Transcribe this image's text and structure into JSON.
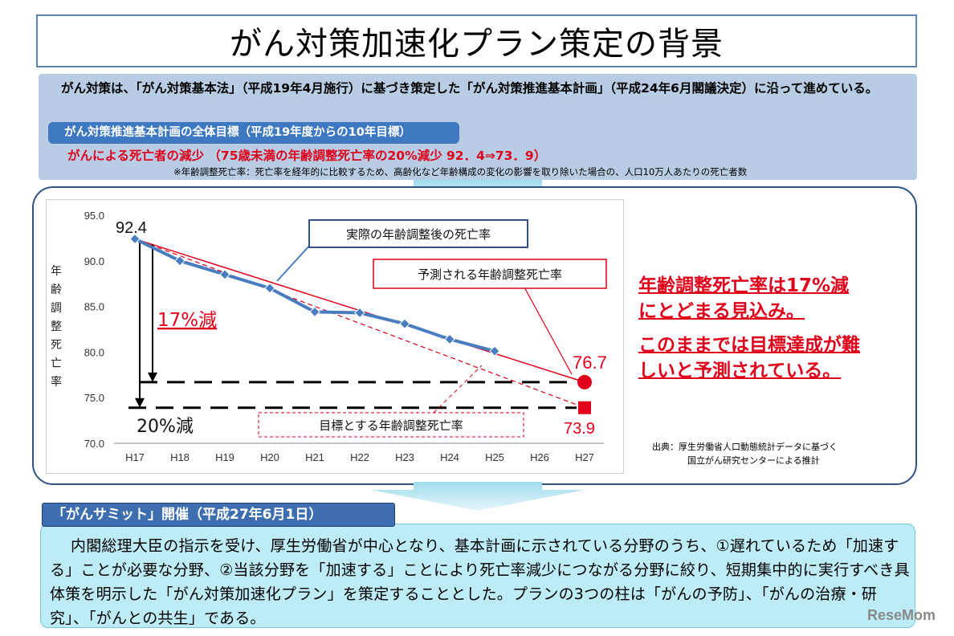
{
  "slide": {
    "title": "がん対策加速化プラン策定の背景",
    "intro_text": "がん対策は、「がん対策基本法」（平成19年4月施行）に基づき策定した「がん対策推進基本計画」（平成24年6月閣議決定）に沿って進めている。",
    "goal_bar_label": "がん対策推進基本計画の全体目標（平成19年度からの10年目標）",
    "goal_target": "がんによる死亡者の減少 （75歳未満の年齢調整死亡率の20%減少 92．4⇒73．9）",
    "footnote": "※年齢調整死亡率：死亡率を経年的に比較するため、高齢化など年齢構成の変化の影響を取り除いた場合の、人口10万人あたりの死亡者数"
  },
  "callout": {
    "line1": "年齢調整死亡率は17%減",
    "line2": "にとどまる見込み。",
    "line3": "このままでは目標達成が難",
    "line4": "しいと予測されている。"
  },
  "source": {
    "line1": "出典：厚生労働省人口動態統計データに基づく",
    "line2": "国立がん研究センターによる推計"
  },
  "summit": {
    "tab_label": "「がんサミット」開催（平成27年6月1日）",
    "body": "内閣総理大臣の指示を受け、厚生労働省が中心となり、基本計画に示されている分野のうち、①遅れているため「加速する」ことが必要な分野、②当該分野を「加速する」ことにより死亡率減少につながる分野に絞り、短期集中的に実行すべき具体策を明示した「がん対策加速化プラン」を策定することとした。プランの3つの柱は「がんの予防」、「がんの治療・研究」、「がんとの共生」である。"
  },
  "logo_text": "ReseMom",
  "chart_data": {
    "type": "line",
    "categories": [
      "H17",
      "H18",
      "H19",
      "H20",
      "H21",
      "H22",
      "H23",
      "H24",
      "H25",
      "H26",
      "H27"
    ],
    "ylabel": "年齢調整死亡率",
    "ylim": [
      70.0,
      95.0
    ],
    "yticks": [
      "70.0",
      "75.0",
      "80.0",
      "85.0",
      "90.0",
      "95.0"
    ],
    "grid": false,
    "series": [
      {
        "name": "実際の年齢調整後の死亡率",
        "color": "#4a7dc0",
        "values": [
          92.4,
          90.0,
          88.5,
          87.0,
          84.4,
          84.3,
          83.1,
          81.4,
          80.1,
          null,
          null
        ]
      },
      {
        "name": "予測される年齢調整死亡率",
        "color": "#e0001a",
        "values": [
          92.4,
          null,
          null,
          null,
          null,
          null,
          null,
          null,
          null,
          null,
          76.7
        ]
      },
      {
        "name": "目標とする年齢調整死亡率",
        "color": "#e0001a",
        "dashed": true,
        "values": [
          92.4,
          null,
          null,
          null,
          null,
          null,
          null,
          null,
          null,
          null,
          73.9
        ]
      }
    ],
    "annotations": {
      "start_label": "92.4",
      "predicted_label": "76.7",
      "target_label": "73.9",
      "pct17_label": "17%減",
      "pct20_label": "20%減"
    }
  }
}
